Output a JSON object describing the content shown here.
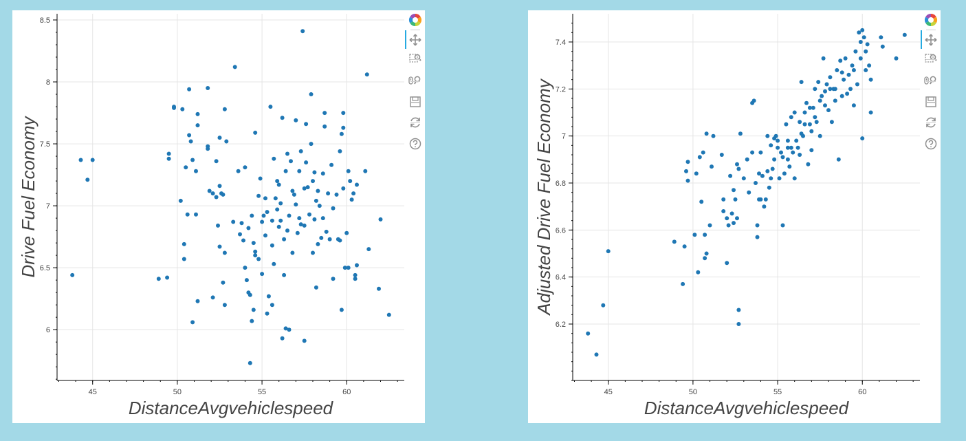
{
  "colors": {
    "background": "#a3d9e7",
    "panel": "#ffffff",
    "point": "#1f77b4",
    "grid": "#e5e5e5",
    "axis": "#444444",
    "active_tool": "#26aae1"
  },
  "toolbar_icons": [
    "bokeh-logo-icon",
    "pan-icon",
    "box-zoom-icon",
    "wheel-zoom-icon",
    "save-icon",
    "reset-icon",
    "help-icon"
  ],
  "chart_data": [
    {
      "type": "scatter",
      "xlabel": "DistanceAvgvehiclespeed",
      "ylabel": "Drive Fuel Economy",
      "xlim": [
        42.9,
        63.4
      ],
      "ylim": [
        5.59,
        8.55
      ],
      "xticks": [
        45,
        50,
        55,
        60
      ],
      "yticks": [
        6,
        6.5,
        7,
        7.5,
        8,
        8.5
      ],
      "ytick_labels": [
        "6",
        "6.5",
        "7",
        "7.5",
        "8",
        "8.5"
      ],
      "grid": true,
      "points": [
        [
          43.8,
          6.44
        ],
        [
          44.3,
          7.37
        ],
        [
          44.7,
          7.21
        ],
        [
          45.0,
          7.37
        ],
        [
          48.9,
          6.41
        ],
        [
          49.4,
          6.42
        ],
        [
          49.5,
          7.42
        ],
        [
          49.5,
          7.38
        ],
        [
          49.8,
          7.8
        ],
        [
          49.8,
          7.79
        ],
        [
          50.2,
          7.04
        ],
        [
          50.3,
          7.78
        ],
        [
          50.4,
          6.69
        ],
        [
          50.4,
          6.57
        ],
        [
          50.5,
          7.31
        ],
        [
          50.6,
          6.93
        ],
        [
          50.7,
          7.57
        ],
        [
          50.7,
          7.94
        ],
        [
          50.8,
          7.52
        ],
        [
          50.9,
          6.06
        ],
        [
          50.9,
          7.37
        ],
        [
          51.1,
          7.28
        ],
        [
          51.1,
          6.93
        ],
        [
          51.2,
          7.74
        ],
        [
          51.2,
          7.65
        ],
        [
          51.2,
          6.23
        ],
        [
          51.8,
          7.95
        ],
        [
          51.8,
          7.48
        ],
        [
          51.8,
          7.46
        ],
        [
          51.9,
          7.12
        ],
        [
          52.1,
          6.26
        ],
        [
          52.1,
          7.1
        ],
        [
          52.3,
          7.36
        ],
        [
          52.3,
          7.07
        ],
        [
          52.4,
          6.84
        ],
        [
          52.5,
          7.16
        ],
        [
          52.5,
          7.55
        ],
        [
          52.5,
          6.67
        ],
        [
          52.6,
          7.1
        ],
        [
          52.7,
          6.38
        ],
        [
          52.7,
          7.09
        ],
        [
          52.8,
          6.2
        ],
        [
          52.8,
          7.78
        ],
        [
          52.8,
          6.62
        ],
        [
          52.9,
          7.52
        ],
        [
          53.3,
          6.87
        ],
        [
          53.4,
          8.12
        ],
        [
          53.6,
          7.28
        ],
        [
          53.7,
          6.77
        ],
        [
          53.8,
          6.86
        ],
        [
          53.9,
          6.72
        ],
        [
          54.0,
          7.31
        ],
        [
          54.0,
          6.5
        ],
        [
          54.1,
          6.4
        ],
        [
          54.2,
          6.82
        ],
        [
          54.2,
          6.3
        ],
        [
          54.3,
          5.73
        ],
        [
          54.4,
          6.07
        ],
        [
          54.4,
          6.92
        ],
        [
          54.5,
          6.7
        ],
        [
          54.5,
          6.16
        ],
        [
          54.6,
          6.6
        ],
        [
          54.6,
          6.63
        ],
        [
          54.6,
          7.59
        ],
        [
          54.8,
          6.57
        ],
        [
          54.8,
          7.08
        ],
        [
          55.0,
          6.87
        ],
        [
          55.1,
          6.92
        ],
        [
          55.2,
          6.76
        ],
        [
          55.2,
          7.06
        ],
        [
          55.3,
          6.13
        ],
        [
          55.4,
          6.27
        ],
        [
          55.5,
          7.8
        ],
        [
          55.6,
          6.88
        ],
        [
          55.6,
          6.2
        ],
        [
          55.7,
          7.38
        ],
        [
          55.7,
          6.53
        ],
        [
          55.8,
          7.06
        ],
        [
          55.9,
          7.2
        ],
        [
          55.9,
          6.97
        ],
        [
          56.0,
          7.17
        ],
        [
          56.0,
          6.83
        ],
        [
          56.1,
          6.88
        ],
        [
          56.2,
          5.93
        ],
        [
          56.2,
          7.71
        ],
        [
          56.3,
          6.73
        ],
        [
          56.3,
          6.44
        ],
        [
          56.4,
          6.01
        ],
        [
          56.4,
          7.28
        ],
        [
          56.5,
          7.42
        ],
        [
          56.6,
          6.0
        ],
        [
          56.6,
          6.92
        ],
        [
          56.7,
          7.36
        ],
        [
          56.8,
          6.62
        ],
        [
          56.9,
          7.09
        ],
        [
          57.0,
          7.69
        ],
        [
          57.0,
          7.01
        ],
        [
          57.1,
          6.78
        ],
        [
          57.2,
          7.28
        ],
        [
          57.3,
          6.85
        ],
        [
          57.3,
          7.44
        ],
        [
          57.4,
          8.41
        ],
        [
          57.5,
          5.91
        ],
        [
          57.5,
          7.14
        ],
        [
          57.5,
          6.84
        ],
        [
          57.6,
          7.66
        ],
        [
          57.6,
          7.35
        ],
        [
          57.7,
          7.15
        ],
        [
          57.8,
          6.93
        ],
        [
          57.9,
          7.5
        ],
        [
          57.9,
          7.9
        ],
        [
          58.0,
          6.62
        ],
        [
          58.1,
          6.89
        ],
        [
          58.1,
          7.27
        ],
        [
          58.2,
          7.04
        ],
        [
          58.2,
          6.34
        ],
        [
          58.3,
          7.12
        ],
        [
          58.3,
          6.69
        ],
        [
          58.4,
          7.0
        ],
        [
          58.5,
          6.74
        ],
        [
          58.6,
          7.26
        ],
        [
          58.6,
          6.9
        ],
        [
          58.7,
          7.64
        ],
        [
          58.7,
          7.75
        ],
        [
          58.8,
          6.79
        ],
        [
          58.9,
          7.1
        ],
        [
          59.0,
          6.73
        ],
        [
          59.1,
          7.33
        ],
        [
          59.2,
          6.41
        ],
        [
          59.2,
          6.98
        ],
        [
          59.4,
          7.09
        ],
        [
          59.5,
          6.73
        ],
        [
          59.6,
          6.72
        ],
        [
          59.6,
          7.44
        ],
        [
          59.7,
          6.16
        ],
        [
          59.7,
          7.58
        ],
        [
          59.8,
          7.75
        ],
        [
          59.8,
          7.63
        ],
        [
          59.8,
          7.14
        ],
        [
          59.9,
          6.5
        ],
        [
          60.0,
          6.78
        ],
        [
          60.1,
          6.5
        ],
        [
          60.1,
          7.28
        ],
        [
          60.2,
          7.2
        ],
        [
          60.3,
          7.05
        ],
        [
          60.4,
          7.1
        ],
        [
          60.5,
          6.41
        ],
        [
          60.5,
          6.44
        ],
        [
          60.6,
          6.52
        ],
        [
          60.6,
          7.17
        ],
        [
          61.1,
          7.28
        ],
        [
          61.2,
          8.06
        ],
        [
          61.3,
          6.65
        ],
        [
          61.9,
          6.33
        ],
        [
          62.0,
          6.89
        ],
        [
          62.5,
          6.12
        ],
        [
          55.6,
          6.68
        ],
        [
          56.1,
          7.02
        ],
        [
          56.8,
          7.12
        ],
        [
          54.9,
          7.22
        ],
        [
          55.3,
          6.95
        ],
        [
          57.2,
          6.9
        ],
        [
          58.0,
          7.2
        ],
        [
          56.5,
          6.8
        ],
        [
          55.0,
          6.45
        ],
        [
          54.3,
          6.28
        ]
      ]
    },
    {
      "type": "scatter",
      "xlabel": "DistanceAvgvehiclespeed",
      "ylabel": "Adjusted Drive Fuel Economy",
      "xlim": [
        42.9,
        63.4
      ],
      "ylim": [
        5.96,
        7.52
      ],
      "xticks": [
        45,
        50,
        55,
        60
      ],
      "yticks": [
        6.2,
        6.4,
        6.6,
        6.8,
        7,
        7.2,
        7.4
      ],
      "ytick_labels": [
        "6.2",
        "6.4",
        "6.6",
        "6.8",
        "7",
        "7.2",
        "7.4"
      ],
      "grid": true,
      "points": [
        [
          43.8,
          6.16
        ],
        [
          44.3,
          6.07
        ],
        [
          44.7,
          6.28
        ],
        [
          45.0,
          6.51
        ],
        [
          48.9,
          6.55
        ],
        [
          49.4,
          6.37
        ],
        [
          49.5,
          6.53
        ],
        [
          49.6,
          6.85
        ],
        [
          49.7,
          6.89
        ],
        [
          49.7,
          6.81
        ],
        [
          50.1,
          6.58
        ],
        [
          50.2,
          6.84
        ],
        [
          50.3,
          6.42
        ],
        [
          50.4,
          6.91
        ],
        [
          50.5,
          6.72
        ],
        [
          50.6,
          6.93
        ],
        [
          50.7,
          6.58
        ],
        [
          50.7,
          6.48
        ],
        [
          50.8,
          6.5
        ],
        [
          50.8,
          7.01
        ],
        [
          51.0,
          6.62
        ],
        [
          51.1,
          6.87
        ],
        [
          51.2,
          7.0
        ],
        [
          51.7,
          6.92
        ],
        [
          51.8,
          6.73
        ],
        [
          51.8,
          6.68
        ],
        [
          52.0,
          6.65
        ],
        [
          52.0,
          6.46
        ],
        [
          52.1,
          6.62
        ],
        [
          52.2,
          6.83
        ],
        [
          52.3,
          6.67
        ],
        [
          52.4,
          6.63
        ],
        [
          52.4,
          6.77
        ],
        [
          52.5,
          6.73
        ],
        [
          52.6,
          6.65
        ],
        [
          52.6,
          6.88
        ],
        [
          52.7,
          6.26
        ],
        [
          52.7,
          6.2
        ],
        [
          52.7,
          6.86
        ],
        [
          52.8,
          7.01
        ],
        [
          53.0,
          6.82
        ],
        [
          53.2,
          6.9
        ],
        [
          53.3,
          6.76
        ],
        [
          53.5,
          7.14
        ],
        [
          53.5,
          6.93
        ],
        [
          53.6,
          7.15
        ],
        [
          53.7,
          6.8
        ],
        [
          53.8,
          6.62
        ],
        [
          53.8,
          6.57
        ],
        [
          53.9,
          6.73
        ],
        [
          54.0,
          6.93
        ],
        [
          54.0,
          6.73
        ],
        [
          54.1,
          6.83
        ],
        [
          54.2,
          6.7
        ],
        [
          54.3,
          6.73
        ],
        [
          54.4,
          6.85
        ],
        [
          54.4,
          7.0
        ],
        [
          54.5,
          6.78
        ],
        [
          54.6,
          6.96
        ],
        [
          54.6,
          6.82
        ],
        [
          54.8,
          6.9
        ],
        [
          54.9,
          7.0
        ],
        [
          55.0,
          6.95
        ],
        [
          55.1,
          6.82
        ],
        [
          55.2,
          6.93
        ],
        [
          55.3,
          6.62
        ],
        [
          55.4,
          6.84
        ],
        [
          55.5,
          7.05
        ],
        [
          55.6,
          6.98
        ],
        [
          55.6,
          6.9
        ],
        [
          55.7,
          6.87
        ],
        [
          55.8,
          7.08
        ],
        [
          55.9,
          6.93
        ],
        [
          56.0,
          6.82
        ],
        [
          56.0,
          7.1
        ],
        [
          56.2,
          6.95
        ],
        [
          56.3,
          6.92
        ],
        [
          56.4,
          7.23
        ],
        [
          56.5,
          7.0
        ],
        [
          56.6,
          7.05
        ],
        [
          56.7,
          7.14
        ],
        [
          56.8,
          6.88
        ],
        [
          56.9,
          7.05
        ],
        [
          57.0,
          6.94
        ],
        [
          57.1,
          7.12
        ],
        [
          57.2,
          7.2
        ],
        [
          57.3,
          7.06
        ],
        [
          57.4,
          7.23
        ],
        [
          57.5,
          7.0
        ],
        [
          57.6,
          7.17
        ],
        [
          57.7,
          7.33
        ],
        [
          57.8,
          7.13
        ],
        [
          57.9,
          7.22
        ],
        [
          58.0,
          7.11
        ],
        [
          58.1,
          7.25
        ],
        [
          58.2,
          7.06
        ],
        [
          58.3,
          7.2
        ],
        [
          58.4,
          7.15
        ],
        [
          58.5,
          7.28
        ],
        [
          58.6,
          6.9
        ],
        [
          58.7,
          7.32
        ],
        [
          58.8,
          7.17
        ],
        [
          58.9,
          7.24
        ],
        [
          59.0,
          7.33
        ],
        [
          59.1,
          7.18
        ],
        [
          59.2,
          7.26
        ],
        [
          59.3,
          7.2
        ],
        [
          59.4,
          7.3
        ],
        [
          59.5,
          7.13
        ],
        [
          59.6,
          7.36
        ],
        [
          59.7,
          7.22
        ],
        [
          59.8,
          7.44
        ],
        [
          59.9,
          7.4
        ],
        [
          59.9,
          7.33
        ],
        [
          60.0,
          6.99
        ],
        [
          60.0,
          7.45
        ],
        [
          60.1,
          7.42
        ],
        [
          60.2,
          7.36
        ],
        [
          60.2,
          7.28
        ],
        [
          60.3,
          7.39
        ],
        [
          60.4,
          7.3
        ],
        [
          60.5,
          7.1
        ],
        [
          60.5,
          7.24
        ],
        [
          61.1,
          7.42
        ],
        [
          61.2,
          7.38
        ],
        [
          62.0,
          7.33
        ],
        [
          62.5,
          7.43
        ],
        [
          55.0,
          6.98
        ],
        [
          55.6,
          6.95
        ],
        [
          56.1,
          6.98
        ],
        [
          56.6,
          7.1
        ],
        [
          57.2,
          7.08
        ],
        [
          57.8,
          7.19
        ],
        [
          58.4,
          7.2
        ],
        [
          54.7,
          6.86
        ],
        [
          55.3,
          6.91
        ],
        [
          56.9,
          7.12
        ],
        [
          57.5,
          7.15
        ],
        [
          58.1,
          7.2
        ],
        [
          53.9,
          6.84
        ],
        [
          54.8,
          6.99
        ],
        [
          56.3,
          7.06
        ],
        [
          57.0,
          7.02
        ],
        [
          58.8,
          7.27
        ],
        [
          59.5,
          7.28
        ],
        [
          55.8,
          6.95
        ],
        [
          56.4,
          7.01
        ]
      ]
    }
  ]
}
